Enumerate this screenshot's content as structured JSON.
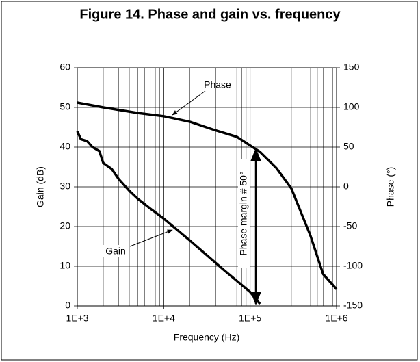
{
  "chart_data": {
    "type": "line",
    "title": "Figure 14. Phase and gain vs. frequency",
    "x_label": "Frequency (Hz)",
    "y_label": "Gain (dB)",
    "y2_label": "Phase (°)",
    "x_log": true,
    "x_minor_grid": true,
    "grid": true,
    "xlim": [
      1000,
      1000000
    ],
    "xticks": [
      {
        "value": 1000,
        "label": "1E+3"
      },
      {
        "value": 10000,
        "label": "1E+4"
      },
      {
        "value": 100000,
        "label": "1E+5"
      },
      {
        "value": 1000000,
        "label": "1E+6"
      }
    ],
    "ylim": [
      0,
      60
    ],
    "yticks": [
      0,
      10,
      20,
      30,
      40,
      50,
      60
    ],
    "y2lim": [
      -150,
      150
    ],
    "y2ticks": [
      -150,
      -100,
      -50,
      0,
      50,
      100,
      150
    ],
    "series": [
      {
        "name": "Gain",
        "color": "#000000",
        "axis": "y",
        "x": [
          1000,
          1100,
          1300,
          1500,
          1800,
          2000,
          2500,
          3000,
          4000,
          5000,
          7000,
          10000,
          20000,
          50000,
          100000,
          130000
        ],
        "values": [
          44,
          42,
          41.5,
          40,
          39,
          36,
          34.5,
          32,
          29,
          27,
          24.5,
          22,
          16.5,
          9,
          3.5,
          0.5
        ]
      },
      {
        "name": "Phase",
        "color": "#000000",
        "axis": "y2",
        "x": [
          1000,
          2000,
          5000,
          10000,
          20000,
          40000,
          70000,
          100000,
          130000,
          200000,
          300000,
          500000,
          700000,
          1000000
        ],
        "values": [
          106,
          100,
          93,
          89,
          82,
          71,
          63,
          52,
          44,
          24,
          -2,
          -62,
          -110,
          -129
        ]
      }
    ],
    "annotations": [
      {
        "text": "Phase"
      },
      {
        "text": "Gain"
      },
      {
        "text": "Phase margin # 50°"
      }
    ]
  }
}
